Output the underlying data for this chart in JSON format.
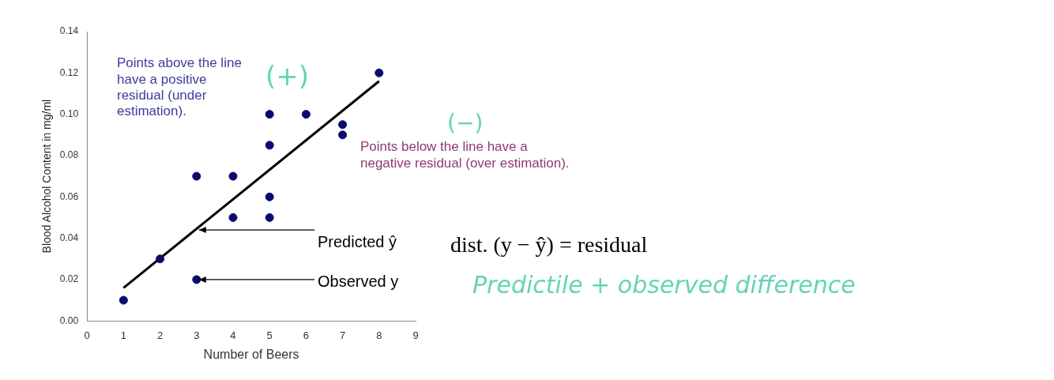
{
  "chart_data": {
    "type": "scatter",
    "xlabel": "Number of Beers",
    "ylabel": "Blood Alcohol Content in mg/ml",
    "series": [
      {
        "type": "scatter",
        "color": "#0a0a6e",
        "x": [
          1,
          2,
          3,
          3,
          4,
          4,
          5,
          5,
          5,
          5,
          6,
          7,
          7,
          8
        ],
        "values": [
          0.01,
          0.03,
          0.07,
          0.02,
          0.07,
          0.05,
          0.1,
          0.085,
          0.06,
          0.05,
          0.1,
          0.095,
          0.09,
          0.12
        ]
      },
      {
        "type": "line",
        "color": "#000000",
        "marker": "none",
        "x": [
          1,
          8
        ],
        "values": [
          0.016,
          0.116
        ]
      }
    ],
    "xlim": [
      0,
      9
    ],
    "xticks": [
      0,
      1,
      2,
      3,
      4,
      5,
      6,
      7,
      8,
      9
    ],
    "ylim": [
      0,
      0.14
    ],
    "yticks": [
      {
        "value": 0,
        "label": "0.00"
      },
      {
        "value": 0.02,
        "label": "0.02"
      },
      {
        "value": 0.04,
        "label": "0.04"
      },
      {
        "value": 0.06,
        "label": "0.06"
      },
      {
        "value": 0.08,
        "label": "0.08"
      },
      {
        "value": 0.1,
        "label": "0.10"
      },
      {
        "value": 0.12,
        "label": "0.12"
      },
      {
        "value": 0.14,
        "label": "0.14"
      }
    ],
    "grid": false,
    "legend": false,
    "marker": "circle",
    "annotations": [
      "Points above the line have a positive residual (under estimation).",
      "(+)",
      "(−)",
      "Points below the line have a negative residual (over estimation).",
      {
        "text": "Predicted ŷ",
        "x": 3,
        "y": 0.044
      },
      {
        "text": "Observed y",
        "x": 3,
        "y": 0.02
      },
      "dist. (y − ŷ) = residual",
      "Predictile + observed difference"
    ]
  }
}
